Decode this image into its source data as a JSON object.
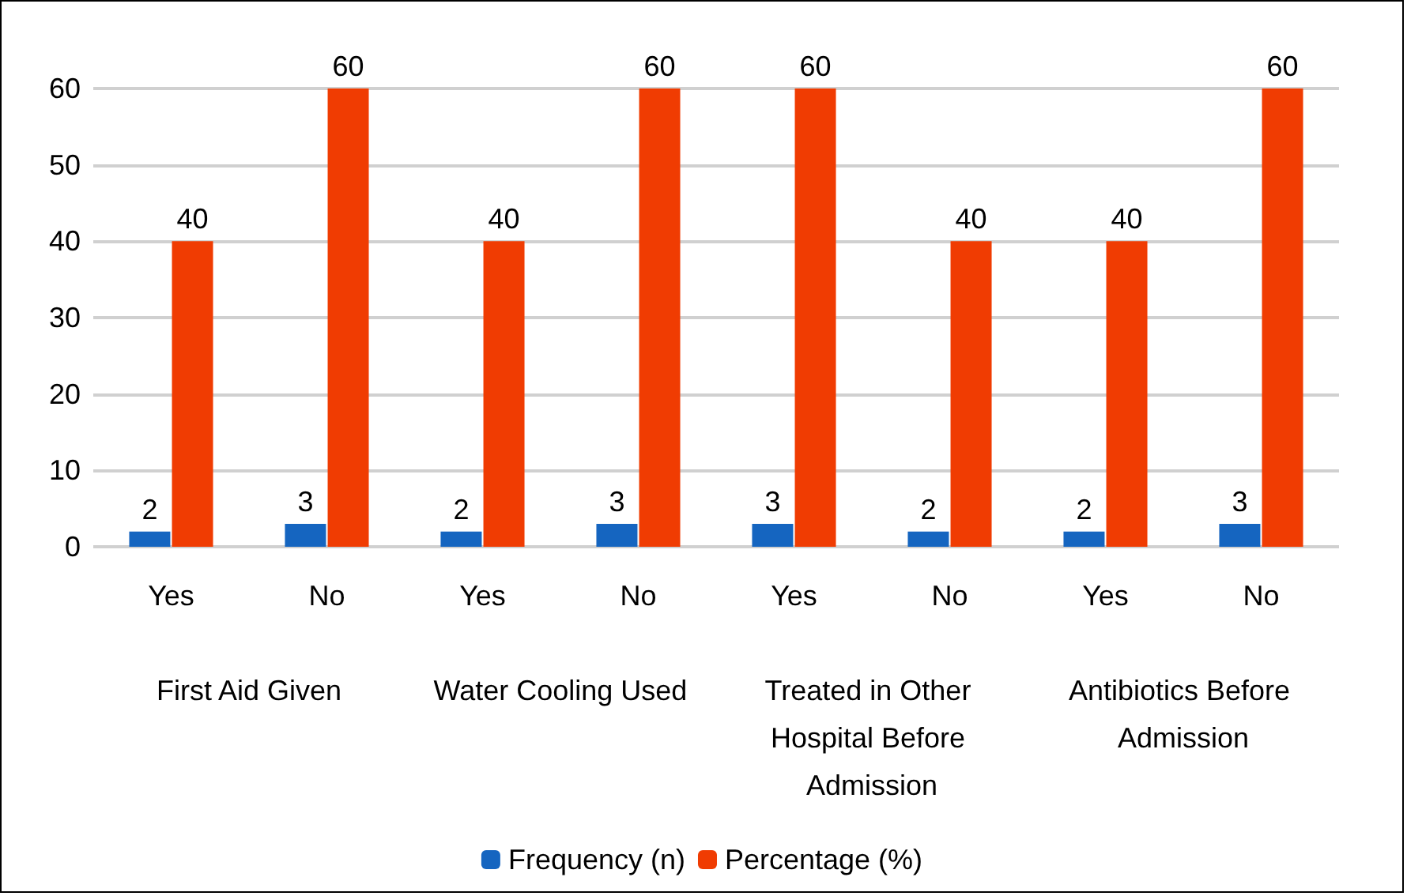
{
  "chart_data": {
    "type": "bar",
    "categories": [
      "Yes",
      "No",
      "Yes",
      "No",
      "Yes",
      "No",
      "Yes",
      "No"
    ],
    "series": [
      {
        "name": "Frequency (n)",
        "color": "#1565c0",
        "values": [
          2,
          3,
          2,
          3,
          3,
          2,
          2,
          3
        ]
      },
      {
        "name": "Percentage (%)",
        "color": "#f03c02",
        "values": [
          40,
          60,
          40,
          60,
          60,
          40,
          40,
          60
        ]
      }
    ],
    "ylim": [
      0,
      60
    ],
    "yticks": [
      0,
      10,
      20,
      30,
      40,
      50,
      60
    ],
    "grid": "y",
    "legend": "bottom",
    "data_labels": true,
    "annotations": [
      "First Aid Given",
      "Water Cooling Used",
      "Treated in Other Hospital Before Admission",
      "Antibiotics Before Admission"
    ]
  }
}
